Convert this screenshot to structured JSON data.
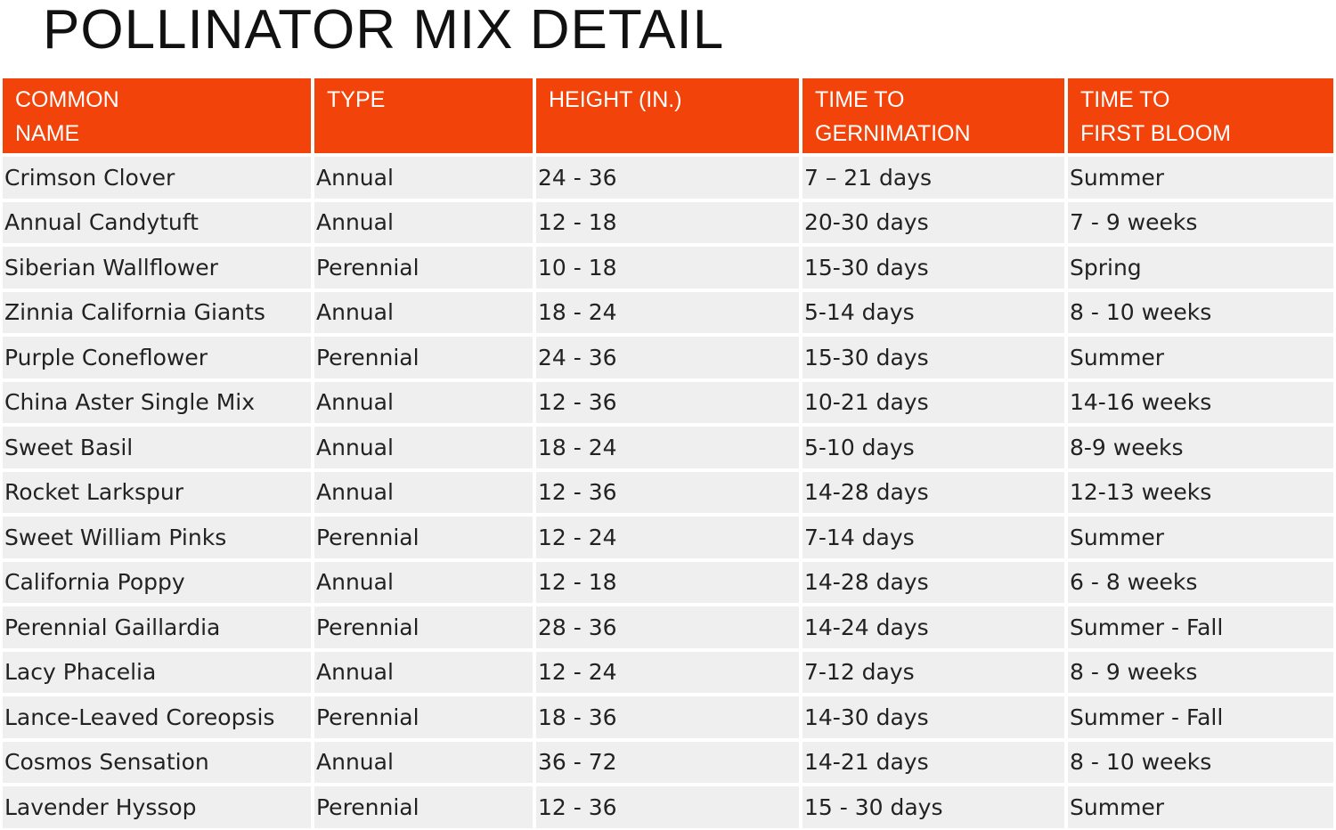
{
  "header": {
    "title": "POLLINATOR MIX DETAIL"
  },
  "table": {
    "columns": [
      "COMMON\nNAME",
      "TYPE",
      "HEIGHT (IN.)",
      "TIME TO\nGERNIMATION",
      "TIME TO\nFIRST BLOOM"
    ],
    "rows": [
      [
        "Crimson Clover",
        "Annual",
        "24 - 36",
        "7 – 21 days",
        "Summer"
      ],
      [
        "Annual Candytuft",
        "Annual",
        "12 - 18",
        "20-30 days",
        "7 - 9 weeks"
      ],
      [
        "Siberian Wallflower",
        "Perennial",
        "10 - 18",
        "15-30 days",
        "Spring"
      ],
      [
        "Zinnia California Giants",
        "Annual",
        "18 - 24",
        "5-14 days",
        "8 - 10 weeks"
      ],
      [
        "Purple Coneflower",
        "Perennial",
        "24 - 36",
        "15-30 days",
        "Summer"
      ],
      [
        "China Aster Single Mix",
        "Annual",
        "12 - 36",
        "10-21 days",
        "14-16 weeks"
      ],
      [
        "Sweet Basil",
        "Annual",
        "18 - 24",
        "5-10 days",
        "8-9 weeks"
      ],
      [
        "Rocket Larkspur",
        "Annual",
        "12 - 36",
        "14-28 days",
        "12-13 weeks"
      ],
      [
        "Sweet William Pinks",
        "Perennial",
        "12 - 24",
        "7-14 days",
        "Summer"
      ],
      [
        "California Poppy",
        "Annual",
        "12 - 18",
        "14-28 days",
        "6 - 8 weeks"
      ],
      [
        "Perennial Gaillardia",
        "Perennial",
        "28 - 36",
        "14-24 days",
        "Summer - Fall"
      ],
      [
        "Lacy Phacelia",
        "Annual",
        "12 - 24",
        "7-12 days",
        "8 - 9 weeks"
      ],
      [
        "Lance-Leaved Coreopsis",
        "Perennial",
        "18 - 36",
        "14-30 days",
        "Summer - Fall"
      ],
      [
        "Cosmos Sensation",
        "Annual",
        "36 - 72",
        "14-21 days",
        "8 - 10 weeks"
      ],
      [
        "Lavender Hyssop",
        "Perennial",
        "12 - 36",
        "15 - 30 days",
        "Summer"
      ]
    ]
  }
}
